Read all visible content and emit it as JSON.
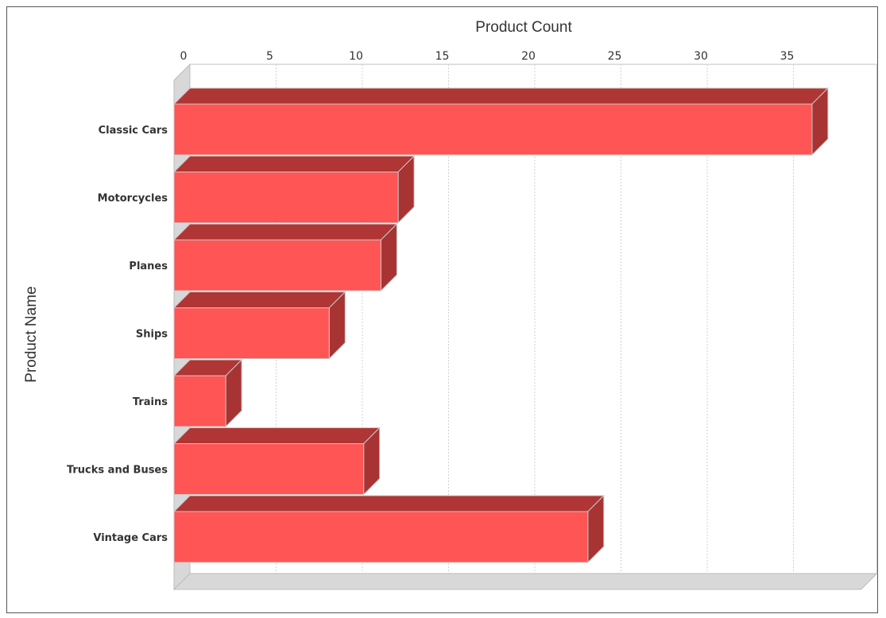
{
  "chart_data": {
    "type": "bar",
    "orientation": "horizontal",
    "style": "3d",
    "xlabel": "Product Count",
    "ylabel": "Product Name",
    "x_axis_position": "top",
    "xlim": [
      0,
      38
    ],
    "x_ticks": [
      0,
      5,
      10,
      15,
      20,
      25,
      30,
      35
    ],
    "grid": true,
    "legend": "none",
    "categories": [
      "Classic Cars",
      "Motorcycles",
      "Planes",
      "Ships",
      "Trains",
      "Trucks and Buses",
      "Vintage Cars"
    ],
    "values": [
      37,
      13,
      12,
      9,
      3,
      11,
      24
    ]
  },
  "colors": {
    "bar_front": "#ff5555",
    "bar_top": "#b03535",
    "bar_side": "#a83333",
    "bar_outline": "#c8c8c8",
    "wall": "#d8d8d8",
    "grid": "#d0d0d0"
  }
}
